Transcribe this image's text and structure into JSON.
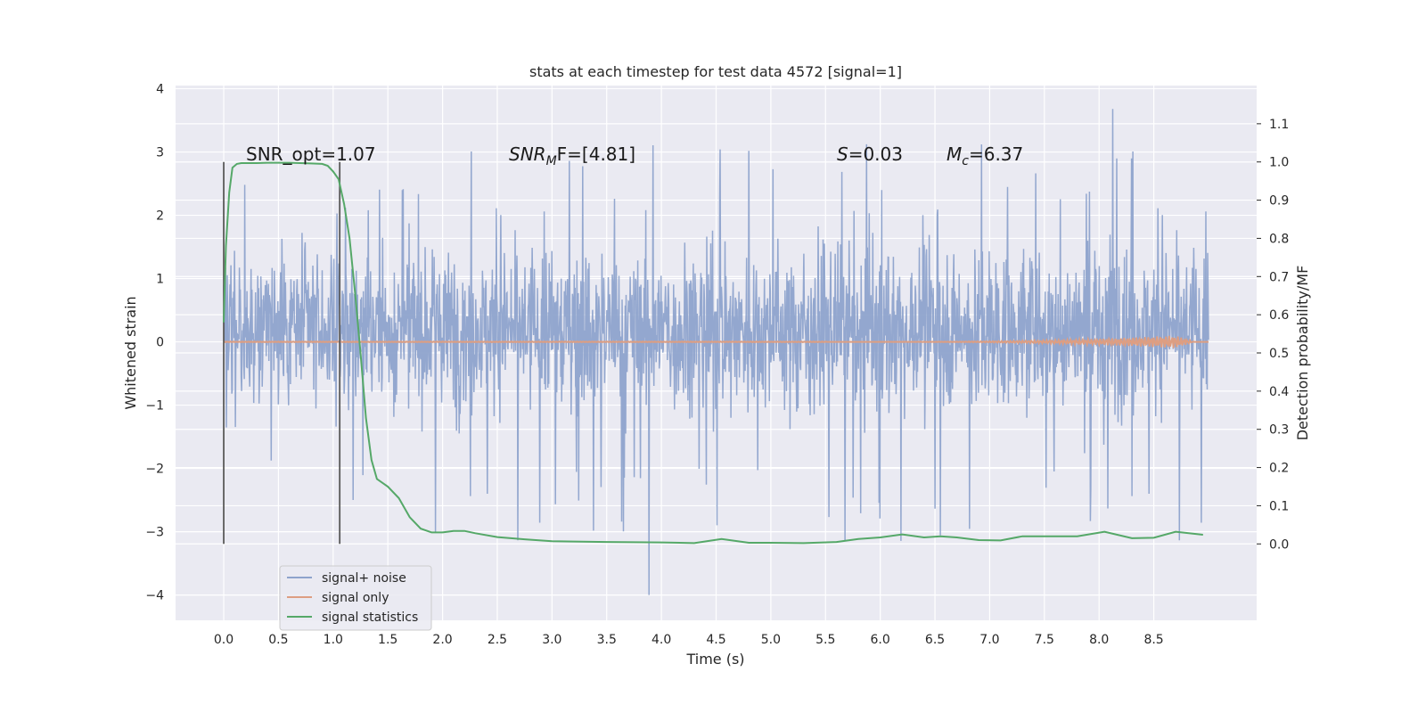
{
  "chart_data": {
    "type": "line",
    "title": "stats at each timestep for test data 4572 [signal=1]",
    "xlabel": "Time (s)",
    "ylabel_left": "Whitened strain",
    "ylabel_right": "Detection probability/MF",
    "xlim": [
      -0.44,
      9.44
    ],
    "ylim_left": [
      -4.4,
      4.05
    ],
    "ylim_right": [
      -0.2,
      1.2
    ],
    "xticks": [
      "0.0",
      "0.5",
      "1.0",
      "1.5",
      "2.0",
      "2.5",
      "3.0",
      "3.5",
      "4.0",
      "4.5",
      "5.0",
      "5.5",
      "6.0",
      "6.5",
      "7.0",
      "7.5",
      "8.0",
      "8.5"
    ],
    "xtick_values": [
      0,
      0.5,
      1,
      1.5,
      2,
      2.5,
      3,
      3.5,
      4,
      4.5,
      5,
      5.5,
      6,
      6.5,
      7,
      7.5,
      8,
      8.5
    ],
    "yticks_left": [
      "4",
      "3",
      "2",
      "1",
      "0",
      "−1",
      "−2",
      "−3",
      "−4"
    ],
    "ytick_left_values": [
      4,
      3,
      2,
      1,
      0,
      -1,
      -2,
      -3,
      -4
    ],
    "yticks_right": [
      "1.1",
      "1.0",
      "0.9",
      "0.8",
      "0.7",
      "0.6",
      "0.5",
      "0.4",
      "0.3",
      "0.2",
      "0.1",
      "0.0"
    ],
    "ytick_right_values": [
      1.1,
      1.0,
      0.9,
      0.8,
      0.7,
      0.6,
      0.5,
      0.4,
      0.3,
      0.2,
      0.1,
      0.0
    ],
    "annotations": {
      "snr_opt": "SNR_opt=1.07",
      "snr_mf_sym": "SNR",
      "snr_mf_sub": "M",
      "snr_mf_rest": "F=[4.81]",
      "s_sym": "S",
      "s_rest": "=0.03",
      "mc_sym": "M",
      "mc_sub": "c",
      "mc_rest": "=6.37"
    },
    "vlines_x": [
      0.0,
      1.06
    ],
    "noise": {
      "name": "signal+ noise",
      "x_range": [
        0.0,
        9.0
      ],
      "typical_band": [
        -1.5,
        2.0
      ],
      "max_value": 3.68,
      "min_value": -4.0
    },
    "signal_only": {
      "name": "signal only",
      "x_range": [
        0.0,
        9.0
      ],
      "chirp_peak_x": 8.7,
      "chirp_peak_amplitude": 0.1
    },
    "series": [
      {
        "name": "signal statistics",
        "x": [
          0.0,
          0.02,
          0.05,
          0.08,
          0.12,
          0.16,
          0.2,
          0.3,
          0.4,
          0.5,
          0.6,
          0.7,
          0.8,
          0.9,
          0.95,
          1.0,
          1.05,
          1.1,
          1.15,
          1.2,
          1.25,
          1.3,
          1.35,
          1.4,
          1.45,
          1.5,
          1.6,
          1.7,
          1.8,
          1.9,
          2.0,
          2.1,
          2.2,
          2.3,
          2.5,
          2.75,
          3.0,
          3.5,
          4.0,
          4.3,
          4.55,
          4.8,
          5.0,
          5.3,
          5.6,
          5.8,
          6.0,
          6.2,
          6.4,
          6.55,
          6.7,
          6.9,
          7.1,
          7.3,
          7.5,
          7.8,
          8.05,
          8.3,
          8.5,
          8.7,
          8.95
        ],
        "values": [
          0.58,
          0.78,
          0.92,
          0.985,
          0.995,
          0.997,
          0.997,
          0.997,
          0.998,
          0.998,
          0.998,
          0.997,
          0.996,
          0.995,
          0.99,
          0.975,
          0.955,
          0.89,
          0.8,
          0.66,
          0.5,
          0.33,
          0.22,
          0.17,
          0.16,
          0.15,
          0.12,
          0.07,
          0.04,
          0.03,
          0.03,
          0.034,
          0.034,
          0.028,
          0.018,
          0.012,
          0.007,
          0.005,
          0.004,
          0.002,
          0.013,
          0.003,
          0.003,
          0.002,
          0.005,
          0.013,
          0.017,
          0.025,
          0.017,
          0.02,
          0.017,
          0.01,
          0.009,
          0.02,
          0.02,
          0.02,
          0.032,
          0.015,
          0.016,
          0.032,
          0.024
        ]
      }
    ],
    "legend": {
      "position": "lower-left",
      "entries": [
        {
          "label": "signal+ noise",
          "color": "#8ea3cc"
        },
        {
          "label": "signal only",
          "color": "#dd9e82"
        },
        {
          "label": "signal statistics",
          "color": "#55a868"
        }
      ]
    },
    "colors": {
      "plot_bg": "#eaeaf2",
      "grid": "#ffffff",
      "noise": "#8ea3cc",
      "signal_only": "#dd9e82",
      "statistic": "#55a868",
      "vline": "#5a5a5a"
    },
    "grid": true
  }
}
